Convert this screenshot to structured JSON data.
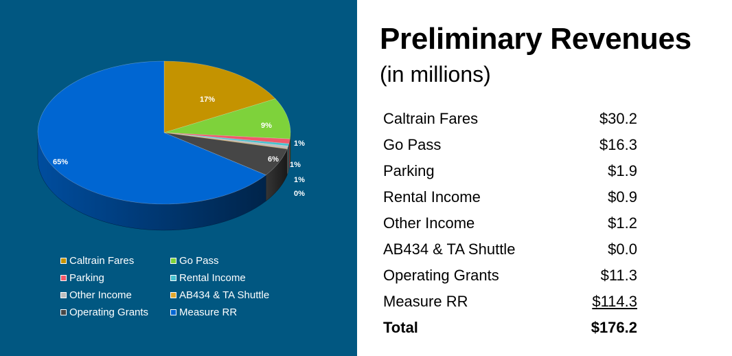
{
  "title": "Preliminary Revenues",
  "subtitle": "(in millions)",
  "chart_data": {
    "type": "pie",
    "style": "3d",
    "slices": [
      {
        "label": "Caltrain Fares",
        "percent_label": "17%",
        "value": 30.2,
        "color": "#C49300"
      },
      {
        "label": "Go Pass",
        "percent_label": "9%",
        "value": 16.3,
        "color": "#7ED23B"
      },
      {
        "label": "Parking",
        "percent_label": "1%",
        "value": 1.9,
        "color": "#F0596A"
      },
      {
        "label": "Rental Income",
        "percent_label": "1%",
        "value": 0.9,
        "color": "#45C1CE"
      },
      {
        "label": "Other Income",
        "percent_label": "1%",
        "value": 1.2,
        "color": "#BDBDBD"
      },
      {
        "label": "AB434 & TA Shuttle",
        "percent_label": "0%",
        "value": 0.0,
        "color": "#E0A82E"
      },
      {
        "label": "Operating Grants",
        "percent_label": "6%",
        "value": 11.3,
        "color": "#464646"
      },
      {
        "label": "Measure RR",
        "percent_label": "65%",
        "value": 114.3,
        "color": "#0066D2"
      }
    ],
    "legend_position": "bottom"
  },
  "table": {
    "rows": [
      {
        "label": "Caltrain Fares",
        "amount": "$30.2"
      },
      {
        "label": "Go Pass",
        "amount": "$16.3"
      },
      {
        "label": "Parking",
        "amount": "$1.9"
      },
      {
        "label": "Rental Income",
        "amount": "$0.9"
      },
      {
        "label": "Other Income",
        "amount": "$1.2"
      },
      {
        "label": "AB434 & TA Shuttle",
        "amount": "$0.0"
      },
      {
        "label": "Operating Grants",
        "amount": "$11.3"
      },
      {
        "label": "Measure RR",
        "amount": "$114.3"
      }
    ],
    "total": {
      "label": "Total",
      "amount": "$176.2"
    }
  }
}
